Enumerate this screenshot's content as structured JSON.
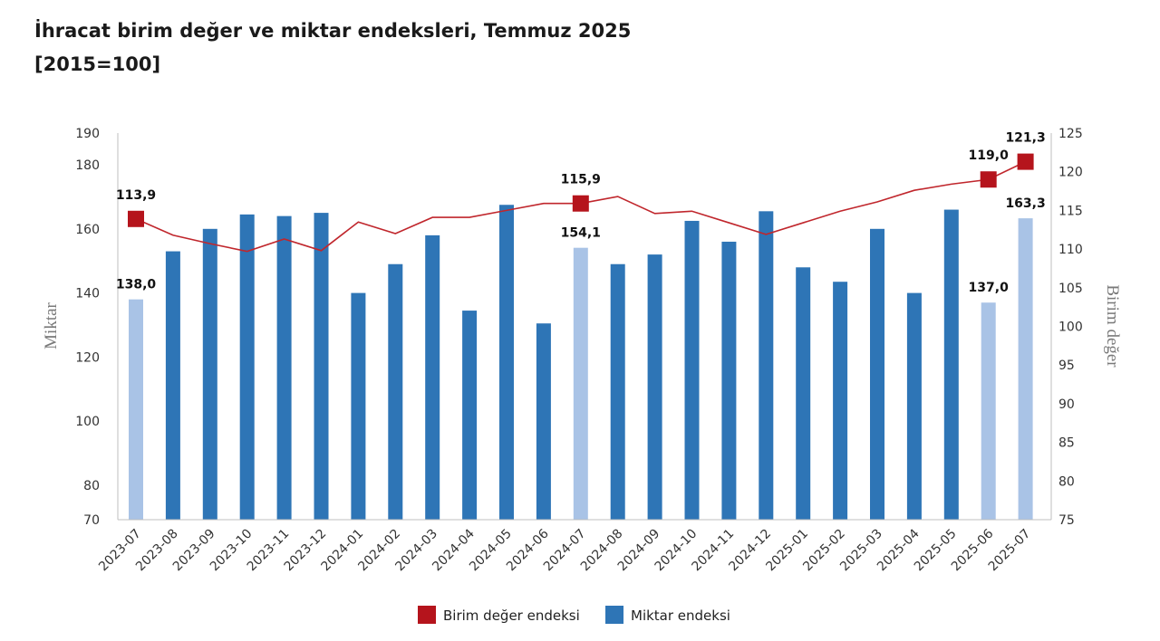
{
  "header": {
    "title": "İhracat birim değer ve miktar endeksleri, Temmuz 2025",
    "subtitle": "[2015=100]"
  },
  "chart_data": {
    "type": "bar",
    "title": "İhracat birim değer ve miktar endeksleri, Temmuz 2025",
    "subtitle": "[2015=100]",
    "categories": [
      "2023-07",
      "2023-08",
      "2023-09",
      "2023-10",
      "2023-11",
      "2023-12",
      "2024-01",
      "2024-02",
      "2024-03",
      "2024-04",
      "2024-05",
      "2024-06",
      "2024-07",
      "2024-08",
      "2024-09",
      "2024-10",
      "2024-11",
      "2024-12",
      "2025-01",
      "2025-02",
      "2025-03",
      "2025-04",
      "2025-05",
      "2025-06",
      "2025-07"
    ],
    "y_left": {
      "label": "Miktar",
      "ticks": [
        70,
        80,
        100,
        120,
        140,
        160,
        180,
        190
      ],
      "range": [
        70,
        190
      ]
    },
    "y_right": {
      "label": "Birim değer",
      "ticks": [
        75,
        80,
        85,
        90,
        95,
        100,
        105,
        110,
        115,
        120,
        125
      ],
      "range": [
        75,
        125
      ]
    },
    "grid": false,
    "legend_position": "bottom",
    "series": [
      {
        "name": "Miktar endeksi",
        "type": "bar",
        "axis": "left",
        "color": "#2e75b6",
        "highlight_color": "#a9c3e6",
        "highlighted_indices": [
          0,
          12,
          23,
          24
        ],
        "values": [
          138.0,
          153.0,
          160.0,
          164.5,
          164.0,
          165.0,
          140.0,
          149.0,
          158.0,
          134.5,
          167.5,
          130.5,
          154.1,
          149.0,
          152.0,
          162.5,
          156.0,
          165.5,
          148.0,
          143.5,
          160.0,
          140.0,
          166.0,
          137.0,
          163.3
        ],
        "labels": {
          "0": "138,0",
          "12": "154,1",
          "23": "137,0",
          "24": "163,3"
        }
      },
      {
        "name": "Birim değer endeksi",
        "type": "line",
        "axis": "right",
        "color": "#c0262c",
        "marker_color": "#b5141c",
        "marker_indices": [
          0,
          12,
          23,
          24
        ],
        "values": [
          113.9,
          111.8,
          110.7,
          109.7,
          111.3,
          109.8,
          113.5,
          112.0,
          114.1,
          114.1,
          115.0,
          115.9,
          115.9,
          116.8,
          114.6,
          114.9,
          113.4,
          111.9,
          113.4,
          114.9,
          116.1,
          117.6,
          118.4,
          119.0,
          121.3
        ],
        "labels": {
          "0": "113,9",
          "12": "115,9",
          "23": "119,0",
          "24": "121,3"
        }
      }
    ]
  }
}
